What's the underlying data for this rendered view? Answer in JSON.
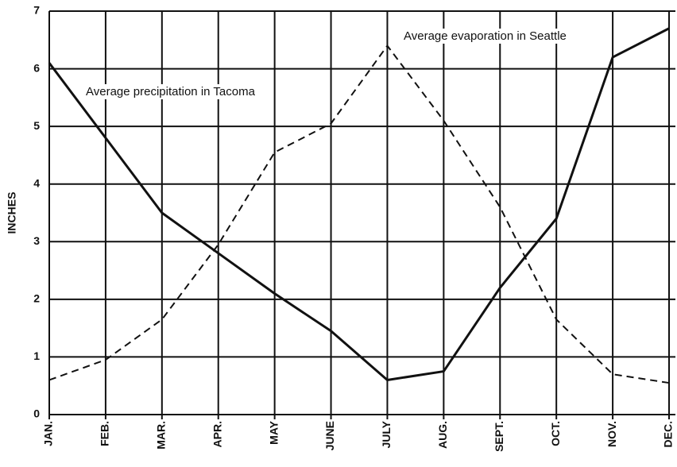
{
  "chart_data": {
    "type": "line",
    "ylabel": "INCHES",
    "categories": [
      "JAN.",
      "FEB.",
      "MAR.",
      "APR.",
      "MAY",
      "JUNE",
      "JULY",
      "AUG.",
      "SEPT.",
      "OCT.",
      "NOV.",
      "DEC."
    ],
    "series": [
      {
        "name": "Average precipitation in Tacoma",
        "color": "#111111",
        "dash": false,
        "values": [
          6.1,
          4.8,
          3.5,
          2.8,
          2.1,
          1.45,
          0.6,
          0.75,
          2.2,
          3.4,
          6.2,
          6.7
        ]
      },
      {
        "name": "Average evaporation in Seattle",
        "color": "#111111",
        "dash": true,
        "values": [
          0.6,
          0.95,
          1.65,
          2.95,
          4.55,
          5.05,
          6.4,
          5.1,
          3.6,
          1.65,
          0.7,
          0.55
        ]
      }
    ],
    "ylim": [
      0,
      7
    ],
    "yticks": [
      0,
      1,
      2,
      3,
      4,
      5,
      6,
      7
    ],
    "grid": true
  }
}
